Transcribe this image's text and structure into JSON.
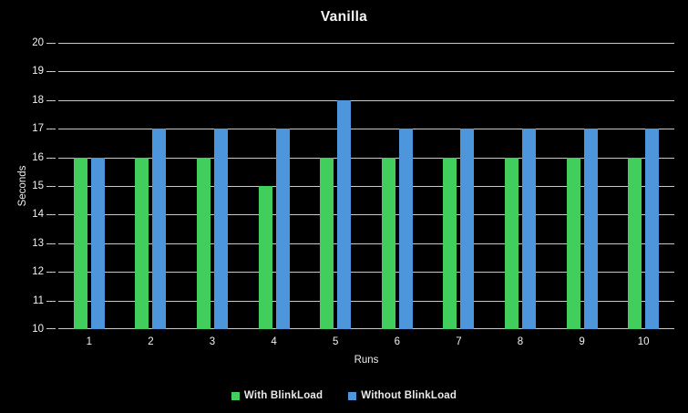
{
  "chart_data": {
    "type": "bar",
    "title": "Vanilla",
    "xlabel": "Runs",
    "ylabel": "Seconds",
    "categories": [
      "1",
      "2",
      "3",
      "4",
      "5",
      "6",
      "7",
      "8",
      "9",
      "10"
    ],
    "series": [
      {
        "name": "With BlinkLoad",
        "color": "#41ce5c",
        "values": [
          16,
          16,
          16,
          15,
          16,
          16,
          16,
          16,
          16,
          16
        ]
      },
      {
        "name": "Without BlinkLoad",
        "color": "#4e96db",
        "values": [
          16,
          17,
          17,
          17,
          18,
          17,
          17,
          17,
          17,
          17
        ]
      }
    ],
    "ylim": [
      10,
      20
    ],
    "yticks": [
      10,
      11,
      12,
      13,
      14,
      15,
      16,
      17,
      18,
      19,
      20
    ],
    "grid": "horizontal",
    "legend_position": "bottom",
    "background_color": "#000000",
    "gridline_color": "#c9c9c9",
    "text_color": "#f2f2f2"
  }
}
